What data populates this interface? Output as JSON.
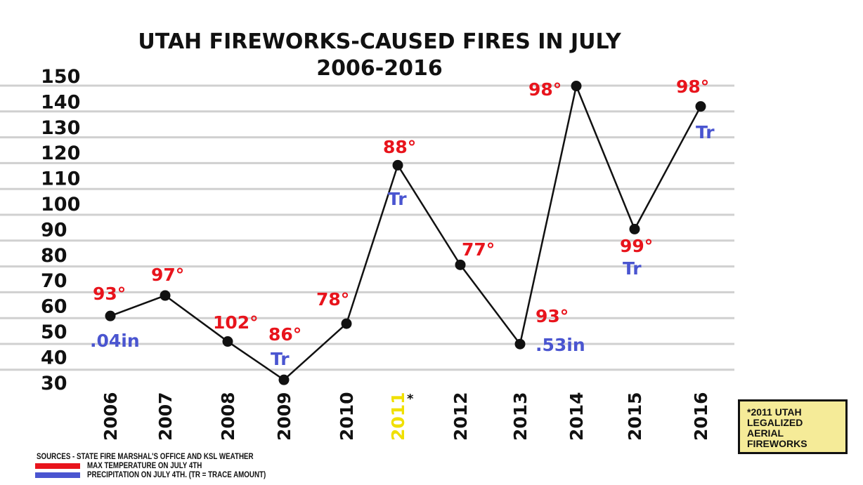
{
  "chart_data": {
    "type": "line",
    "title": "UTAH FIREWORKS-CAUSED FIRES IN JULY",
    "subtitle": "2006-2016",
    "categories": [
      "2006",
      "2007",
      "2008",
      "2009",
      "2010",
      "2011",
      "2012",
      "2013",
      "2014",
      "2015",
      "2016"
    ],
    "highlight_category": "2011",
    "highlight_marker": "*",
    "values": [
      56,
      64,
      46,
      31,
      53,
      115,
      76,
      45,
      146,
      90,
      138
    ],
    "ylim": [
      30,
      150
    ],
    "yticks": [
      "150",
      "140",
      "130",
      "120",
      "110",
      "100",
      "90",
      "80",
      "70",
      "60",
      "50",
      "40",
      "30"
    ],
    "grid": true,
    "temperature_labels": [
      "93°",
      "97°",
      "102°",
      "86°",
      "78°",
      "88°",
      "77°",
      "93°",
      "98°",
      "99°",
      "98°"
    ],
    "precipitation_labels": [
      ".04in",
      "",
      "",
      "Tr",
      "",
      "Tr",
      "",
      ".53in",
      "",
      "Tr",
      "Tr"
    ],
    "colors": {
      "line": "#111111",
      "temperature": "#e8141c",
      "precipitation": "#4a55d0",
      "highlight": "#f0e000",
      "grid": "#d0d0d0",
      "note_bg": "#f5eb98"
    }
  },
  "note": [
    "*2011 UTAH",
    "LEGALIZED",
    "AERIAL",
    "FIREWORKS"
  ],
  "legend": {
    "sources": "SOURCES - STATE FIRE MARSHAL'S OFFICE AND KSL WEATHER",
    "temperature": "MAX TEMPERATURE ON JULY 4TH",
    "precipitation": "PRECIPITATION ON JULY 4TH. (TR = TRACE AMOUNT)"
  }
}
